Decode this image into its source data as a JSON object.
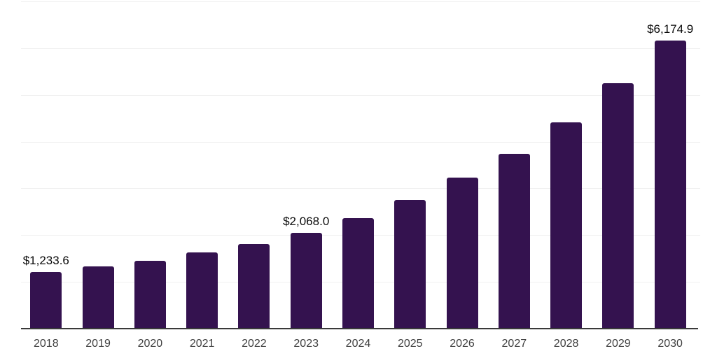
{
  "chart_data": {
    "type": "bar",
    "categories": [
      "2018",
      "2019",
      "2020",
      "2021",
      "2022",
      "2023",
      "2024",
      "2025",
      "2026",
      "2027",
      "2028",
      "2029",
      "2030"
    ],
    "values": [
      1233.6,
      1350,
      1465,
      1650,
      1830,
      2068.0,
      2385,
      2760,
      3240,
      3750,
      4425,
      5265,
      6174.9
    ],
    "value_labels": [
      {
        "index": 0,
        "text": "$1,233.6"
      },
      {
        "index": 5,
        "text": "$2,068.0"
      },
      {
        "index": 12,
        "text": "$6,174.9"
      }
    ],
    "title": "",
    "xlabel": "",
    "ylabel": "",
    "ylim": [
      0,
      7000
    ],
    "gridline_interval": 1000,
    "grid": true,
    "legend": "none"
  },
  "colors": {
    "bar": "#34124f",
    "gridline": "#f0f0f0",
    "axis_line": "#3a3a3a",
    "tick_label": "#3f3f3f",
    "value_label": "#0a0a0a",
    "background": "#ffffff"
  }
}
